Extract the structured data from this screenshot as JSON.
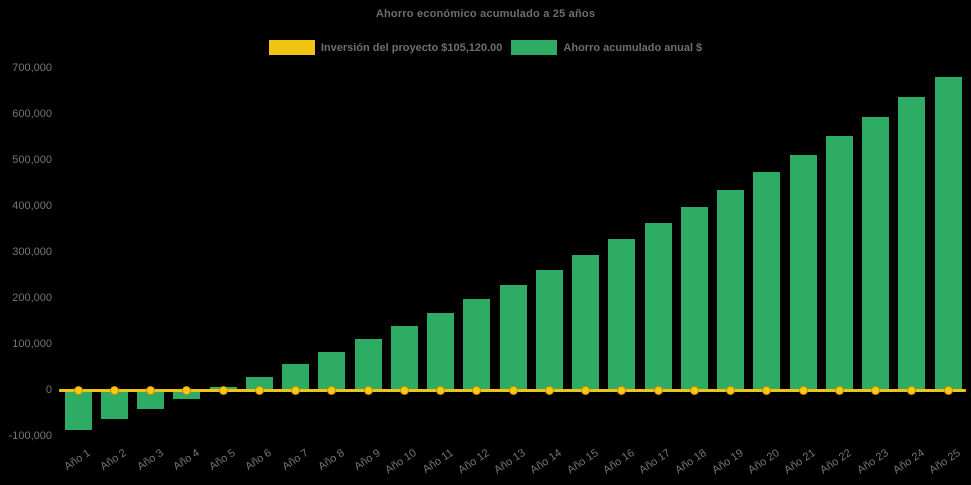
{
  "title": "Ahorro económico acumulado a 25 años",
  "legend": {
    "investment_label": "Inversión del proyecto $105,120.00",
    "savings_label": "Ahorro acumulado anual $"
  },
  "colors": {
    "background": "#000000",
    "bar_green": "#2eac64",
    "line_yellow": "#f0c413",
    "marker_fill": "#ffc913",
    "marker_border": "#c89200",
    "title_text": "#6e6e6e",
    "axis_text": "#757575"
  },
  "chart_data": {
    "type": "bar",
    "title": "Ahorro económico acumulado a 25 años",
    "xlabel": "",
    "ylabel": "",
    "ylim": [
      -100000,
      700000
    ],
    "ytick_step": 100000,
    "grid": false,
    "legend_position": "top-center",
    "x_label_rotation_deg": -34,
    "categories": [
      "Año 1",
      "Año 2",
      "Año 3",
      "Año 4",
      "Año 5",
      "Año 6",
      "Año 7",
      "Año 8",
      "Año 9",
      "Año 10",
      "Año 11",
      "Año 12",
      "Año 13",
      "Año 14",
      "Año 15",
      "Año 16",
      "Año 17",
      "Año 18",
      "Año 19",
      "Año 20",
      "Año 21",
      "Año 22",
      "Año 23",
      "Año 24",
      "Año 25"
    ],
    "series": [
      {
        "name": "Inversión del proyecto $105,120.00",
        "type": "line",
        "color": "#f0c413",
        "marker": "circle",
        "values": [
          0,
          0,
          0,
          0,
          0,
          0,
          0,
          0,
          0,
          0,
          0,
          0,
          0,
          0,
          0,
          0,
          0,
          0,
          0,
          0,
          0,
          0,
          0,
          0,
          0
        ]
      },
      {
        "name": "Ahorro acumulado anual $",
        "type": "bar",
        "color": "#2eac64",
        "values": [
          -86000,
          -62000,
          -40000,
          -18000,
          8000,
          30000,
          58000,
          84000,
          111000,
          140000,
          168000,
          199000,
          228000,
          261000,
          295000,
          328000,
          363000,
          399000,
          436000,
          474000,
          512000,
          552000,
          594000,
          637000,
          681000
        ]
      }
    ]
  }
}
